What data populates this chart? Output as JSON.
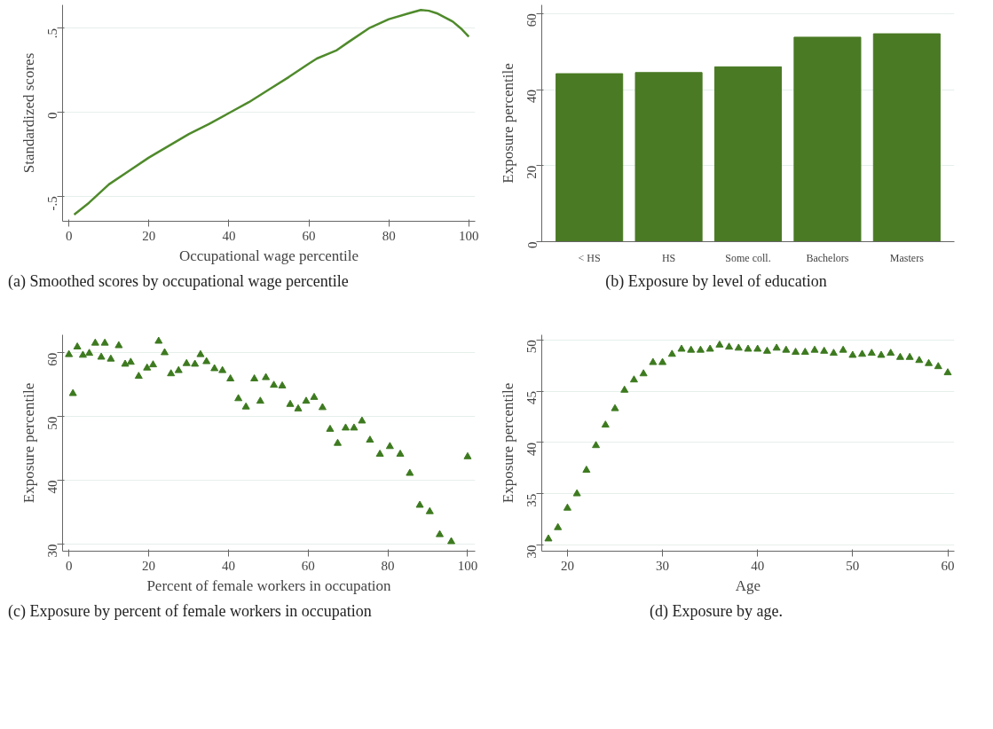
{
  "chart_data": [
    {
      "type": "line",
      "title": "(a) Smoothed scores by occupational wage percentile",
      "xlabel": "Occupational wage percentile",
      "ylabel": "Standardized scores",
      "color": "#4f8a2b",
      "x": [
        1.3,
        5,
        10,
        15,
        20,
        25,
        30,
        35,
        40,
        45,
        50,
        55,
        60,
        62,
        65,
        67,
        70,
        75,
        80,
        85,
        88,
        90,
        92,
        94,
        96,
        98,
        100
      ],
      "values": [
        -0.61,
        -0.54,
        -0.43,
        -0.35,
        -0.27,
        -0.2,
        -0.13,
        -0.07,
        -0.005,
        0.06,
        0.135,
        0.21,
        0.29,
        0.32,
        0.35,
        0.37,
        0.42,
        0.5,
        0.555,
        0.59,
        0.61,
        0.605,
        0.59,
        0.565,
        0.54,
        0.5,
        0.45
      ],
      "xlim": [
        -1.6,
        101.6
      ],
      "ylim": [
        -0.65,
        0.64
      ],
      "xticks": [
        0,
        20,
        40,
        60,
        80,
        100
      ],
      "yticks": [
        {
          "value": -0.5,
          "label": "-.5"
        },
        0,
        {
          "value": 0.5,
          "label": ".5"
        }
      ],
      "grid": "y",
      "line_style": "solid",
      "marker": "none"
    },
    {
      "type": "bar",
      "title": "(b) Exposure by level of education",
      "ylabel": "Exposure percentile",
      "color": "#4a7a24",
      "categories": [
        "< HS",
        "HS",
        "Some coll.",
        "Bachelors",
        "Masters"
      ],
      "values": [
        44.2,
        44.5,
        46.0,
        53.8,
        54.7
      ],
      "ylim": [
        0,
        62.3
      ],
      "yticks": [
        0,
        20,
        40,
        60
      ],
      "grid": "y"
    },
    {
      "type": "scatter",
      "title": "(c) Exposure by percent of female workers in occupation",
      "xlabel": "Percent of female workers in occupation",
      "ylabel": "Exposure percentile",
      "color": "#3d7a1f",
      "marker": "triangle",
      "x": [
        0,
        1.0,
        2.1,
        3.5,
        5.1,
        6.6,
        8.1,
        9.0,
        10.5,
        12.5,
        14.1,
        15.5,
        17.5,
        19.6,
        21.1,
        22.5,
        24.0,
        25.6,
        27.5,
        29.5,
        31.6,
        33.0,
        34.5,
        36.5,
        38.5,
        40.5,
        42.5,
        44.4,
        46.5,
        48.0,
        49.4,
        51.4,
        53.5,
        55.5,
        57.5,
        59.5,
        61.5,
        63.6,
        65.5,
        67.4,
        69.4,
        71.5,
        73.5,
        75.5,
        78.0,
        80.5,
        83.1,
        85.5,
        88.0,
        90.5,
        93.0,
        95.9,
        100
      ],
      "values": [
        59.7,
        53.6,
        60.9,
        59.6,
        59.9,
        61.5,
        59.3,
        61.5,
        59.0,
        61.1,
        58.2,
        58.5,
        56.3,
        57.6,
        58.1,
        61.8,
        60.0,
        56.7,
        57.2,
        58.3,
        58.2,
        59.7,
        58.6,
        57.5,
        57.2,
        55.9,
        52.8,
        51.5,
        55.9,
        52.4,
        56.1,
        54.9,
        54.8,
        51.9,
        51.2,
        52.4,
        53.0,
        51.4,
        48.0,
        45.8,
        48.2,
        48.2,
        49.3,
        46.3,
        44.1,
        45.3,
        44.1,
        41.1,
        36.1,
        35.1,
        31.5,
        30.4,
        43.7
      ],
      "xlim": [
        -1.6,
        101.9
      ],
      "ylim": [
        28.9,
        62.8
      ],
      "xticks": [
        0,
        20,
        40,
        60,
        80,
        100
      ],
      "yticks": [
        30,
        40,
        50,
        60
      ],
      "grid": "y"
    },
    {
      "type": "scatter",
      "title": "(d) Exposure by age.",
      "xlabel": "Age",
      "ylabel": "Exposure percentile",
      "color": "#3d7a1f",
      "marker": "triangle",
      "x": [
        18,
        19,
        20,
        21,
        22,
        23,
        24,
        25,
        26,
        27,
        28,
        29,
        30,
        31,
        32,
        33,
        34,
        35,
        36,
        37,
        38,
        39,
        40,
        41,
        42,
        43,
        44,
        45,
        46,
        47,
        48,
        49,
        50,
        51,
        52,
        53,
        54,
        55,
        56,
        57,
        58,
        59,
        60
      ],
      "values": [
        30.6,
        31.7,
        33.6,
        35.0,
        37.3,
        39.7,
        41.7,
        43.3,
        45.1,
        46.1,
        46.7,
        47.8,
        47.8,
        48.6,
        49.1,
        49.0,
        49.0,
        49.1,
        49.5,
        49.3,
        49.2,
        49.1,
        49.1,
        48.9,
        49.2,
        49.0,
        48.8,
        48.8,
        49.0,
        48.9,
        48.7,
        49.0,
        48.5,
        48.6,
        48.7,
        48.5,
        48.7,
        48.3,
        48.3,
        48.0,
        47.7,
        47.4,
        46.8
      ],
      "xlim": [
        17.3,
        60.7
      ],
      "ylim": [
        29.4,
        50.5
      ],
      "xticks": [
        20,
        30,
        40,
        50,
        60
      ],
      "yticks": [
        30,
        35,
        40,
        45,
        50
      ],
      "grid": "y"
    }
  ]
}
